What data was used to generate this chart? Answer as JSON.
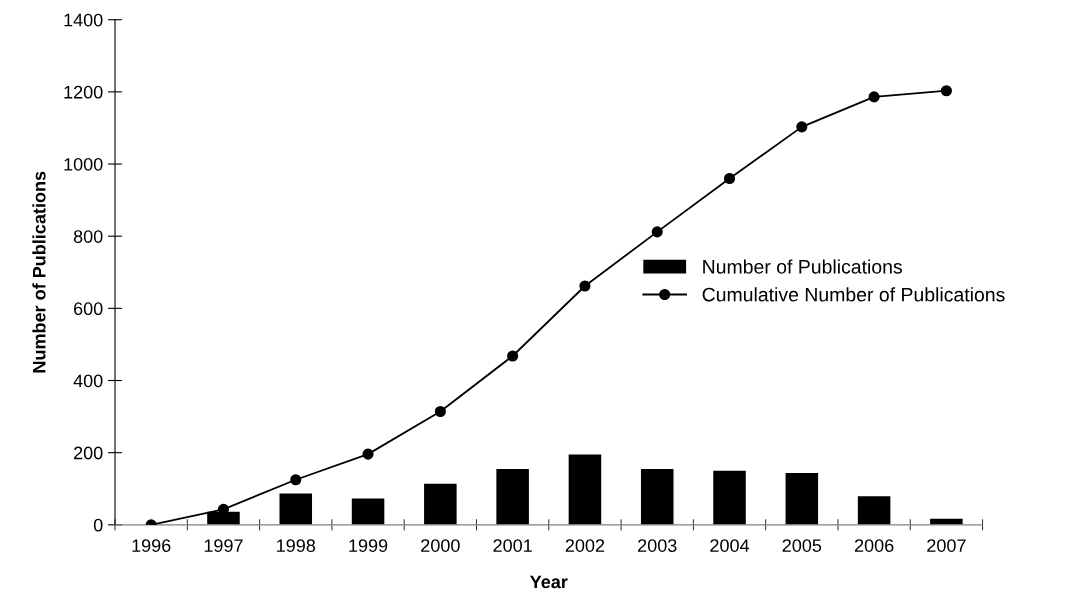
{
  "chart_data": {
    "type": "bar",
    "xlabel": "Year",
    "ylabel": "Number of Publications",
    "categories": [
      "1996",
      "1997",
      "1998",
      "1999",
      "2000",
      "2001",
      "2002",
      "2003",
      "2004",
      "2005",
      "2006",
      "2007"
    ],
    "series": [
      {
        "name": "Number of Publications",
        "color": "#000000",
        "values": [
          0,
          36,
          87,
          73,
          114,
          155,
          195,
          155,
          150,
          144,
          79,
          17
        ]
      },
      {
        "name": "Cumulative Number of Publications",
        "type": "line",
        "color": "#000000",
        "marker": "circle",
        "line_style": "solid",
        "values": [
          0,
          43,
          125,
          196,
          314,
          468,
          662,
          812,
          960,
          1103,
          1186,
          1203
        ]
      }
    ],
    "ylim": [
      0,
      1400
    ],
    "yticks": [
      0,
      200,
      400,
      600,
      800,
      1000,
      1200,
      1400
    ],
    "grid": false,
    "legend": "right"
  }
}
